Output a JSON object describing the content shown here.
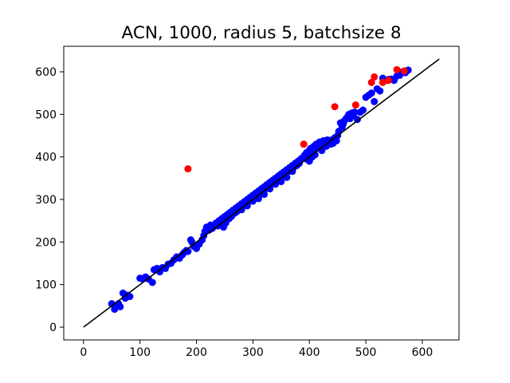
{
  "chart_data": {
    "type": "scatter",
    "title": "ACN, 1000, radius 5, batchsize 8",
    "xlabel": "",
    "ylabel": "",
    "xlim": [
      -35,
      665
    ],
    "ylim": [
      -30,
      660
    ],
    "xticks": [
      0,
      100,
      200,
      300,
      400,
      500,
      600
    ],
    "yticks": [
      0,
      100,
      200,
      300,
      400,
      500,
      600
    ],
    "grid": false,
    "legend": "none",
    "reference_line": {
      "x": [
        0,
        630
      ],
      "y": [
        0,
        630
      ],
      "color": "#000000"
    },
    "series": [
      {
        "color": "#0000ff",
        "points": [
          [
            50,
            55
          ],
          [
            55,
            42
          ],
          [
            58,
            50
          ],
          [
            62,
            55
          ],
          [
            65,
            48
          ],
          [
            70,
            80
          ],
          [
            74,
            68
          ],
          [
            78,
            75
          ],
          [
            82,
            72
          ],
          [
            100,
            115
          ],
          [
            105,
            113
          ],
          [
            110,
            118
          ],
          [
            115,
            113
          ],
          [
            122,
            105
          ],
          [
            125,
            135
          ],
          [
            130,
            138
          ],
          [
            135,
            130
          ],
          [
            140,
            140
          ],
          [
            145,
            138
          ],
          [
            150,
            148
          ],
          [
            155,
            150
          ],
          [
            160,
            158
          ],
          [
            165,
            165
          ],
          [
            170,
            162
          ],
          [
            175,
            170
          ],
          [
            178,
            175
          ],
          [
            182,
            180
          ],
          [
            185,
            178
          ],
          [
            190,
            205
          ],
          [
            192,
            200
          ],
          [
            195,
            190
          ],
          [
            200,
            185
          ],
          [
            205,
            195
          ],
          [
            210,
            205
          ],
          [
            213,
            215
          ],
          [
            215,
            225
          ],
          [
            218,
            235
          ],
          [
            222,
            228
          ],
          [
            225,
            240
          ],
          [
            228,
            232
          ],
          [
            232,
            238
          ],
          [
            235,
            245
          ],
          [
            238,
            238
          ],
          [
            240,
            250
          ],
          [
            243,
            243
          ],
          [
            245,
            255
          ],
          [
            248,
            235
          ],
          [
            250,
            260
          ],
          [
            252,
            245
          ],
          [
            255,
            265
          ],
          [
            258,
            255
          ],
          [
            260,
            270
          ],
          [
            262,
            260
          ],
          [
            265,
            275
          ],
          [
            268,
            268
          ],
          [
            270,
            280
          ],
          [
            272,
            272
          ],
          [
            275,
            285
          ],
          [
            278,
            278
          ],
          [
            280,
            290
          ],
          [
            282,
            285
          ],
          [
            285,
            295
          ],
          [
            288,
            288
          ],
          [
            290,
            300
          ],
          [
            292,
            295
          ],
          [
            295,
            305
          ],
          [
            298,
            300
          ],
          [
            300,
            310
          ],
          [
            302,
            305
          ],
          [
            305,
            315
          ],
          [
            308,
            310
          ],
          [
            310,
            320
          ],
          [
            312,
            315
          ],
          [
            315,
            325
          ],
          [
            318,
            320
          ],
          [
            320,
            330
          ],
          [
            322,
            325
          ],
          [
            325,
            335
          ],
          [
            328,
            330
          ],
          [
            330,
            340
          ],
          [
            332,
            335
          ],
          [
            335,
            345
          ],
          [
            338,
            340
          ],
          [
            340,
            350
          ],
          [
            342,
            345
          ],
          [
            345,
            355
          ],
          [
            348,
            350
          ],
          [
            350,
            360
          ],
          [
            352,
            355
          ],
          [
            355,
            365
          ],
          [
            358,
            360
          ],
          [
            360,
            370
          ],
          [
            362,
            365
          ],
          [
            365,
            375
          ],
          [
            368,
            370
          ],
          [
            370,
            380
          ],
          [
            372,
            375
          ],
          [
            375,
            385
          ],
          [
            378,
            380
          ],
          [
            380,
            390
          ],
          [
            382,
            385
          ],
          [
            385,
            395
          ],
          [
            388,
            398
          ],
          [
            390,
            400
          ],
          [
            392,
            405
          ],
          [
            395,
            410
          ],
          [
            398,
            403
          ],
          [
            400,
            415
          ],
          [
            402,
            420
          ],
          [
            405,
            408
          ],
          [
            408,
            425
          ],
          [
            410,
            418
          ],
          [
            412,
            430
          ],
          [
            415,
            422
          ],
          [
            418,
            435
          ],
          [
            420,
            428
          ],
          [
            422,
            415
          ],
          [
            425,
            438
          ],
          [
            428,
            432
          ],
          [
            430,
            425
          ],
          [
            432,
            440
          ],
          [
            435,
            435
          ],
          [
            438,
            430
          ],
          [
            440,
            440
          ],
          [
            442,
            432
          ],
          [
            445,
            445
          ],
          [
            448,
            438
          ],
          [
            450,
            450
          ],
          [
            452,
            460
          ],
          [
            455,
            480
          ],
          [
            458,
            470
          ],
          [
            460,
            478
          ],
          [
            462,
            485
          ],
          [
            465,
            490
          ],
          [
            468,
            495
          ],
          [
            470,
            500
          ],
          [
            472,
            490
          ],
          [
            475,
            503
          ],
          [
            478,
            498
          ],
          [
            480,
            505
          ],
          [
            485,
            488
          ],
          [
            490,
            505
          ],
          [
            495,
            510
          ],
          [
            500,
            540
          ],
          [
            505,
            545
          ],
          [
            510,
            550
          ],
          [
            515,
            530
          ],
          [
            520,
            560
          ],
          [
            525,
            555
          ],
          [
            530,
            585
          ],
          [
            535,
            580
          ],
          [
            540,
            582
          ],
          [
            545,
            583
          ],
          [
            550,
            580
          ],
          [
            555,
            590
          ],
          [
            560,
            592
          ],
          [
            565,
            600
          ],
          [
            570,
            598
          ],
          [
            575,
            604
          ],
          [
            395,
            395
          ],
          [
            400,
            390
          ],
          [
            405,
            400
          ],
          [
            410,
            405
          ],
          [
            320,
            312
          ],
          [
            330,
            325
          ],
          [
            340,
            336
          ],
          [
            350,
            342
          ],
          [
            360,
            352
          ],
          [
            370,
            366
          ],
          [
            280,
            276
          ],
          [
            290,
            285
          ],
          [
            300,
            296
          ],
          [
            310,
            302
          ]
        ]
      },
      {
        "color": "#ff0000",
        "points": [
          [
            185,
            372
          ],
          [
            390,
            430
          ],
          [
            445,
            518
          ],
          [
            482,
            522
          ],
          [
            510,
            575
          ],
          [
            515,
            588
          ],
          [
            530,
            575
          ],
          [
            540,
            580
          ],
          [
            555,
            605
          ],
          [
            568,
            602
          ]
        ]
      }
    ]
  }
}
